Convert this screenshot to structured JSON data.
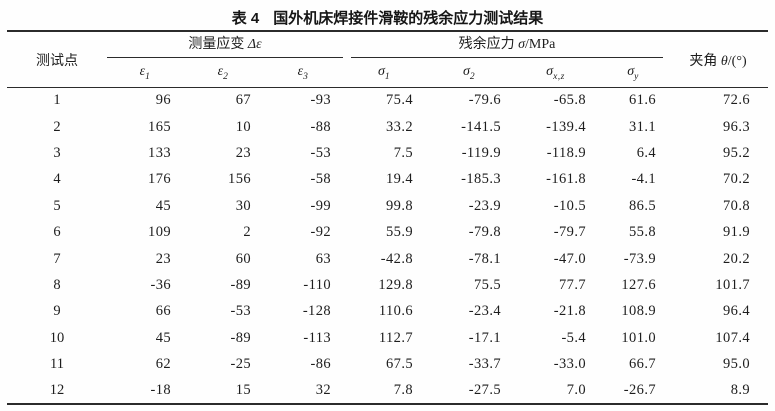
{
  "title": {
    "tag": "表 4",
    "text": "国外机床焊接件滑鞍的残余应力测试结果"
  },
  "table": {
    "col_point": "测试点",
    "group_strain": {
      "label": "测量应变",
      "sym": "Δε"
    },
    "group_stress": {
      "label": "残余应力",
      "sym": "σ",
      "unit": "/MPa"
    },
    "col_angle": {
      "label": "夹角",
      "sym": "θ",
      "unit": "/(°)"
    },
    "sub_columns": [
      {
        "base": "ε",
        "sub": "1"
      },
      {
        "base": "ε",
        "sub": "2"
      },
      {
        "base": "ε",
        "sub": "3"
      },
      {
        "base": "σ",
        "sub": "1"
      },
      {
        "base": "σ",
        "sub": "2"
      },
      {
        "base": "σ",
        "sub": "x,z"
      },
      {
        "base": "σ",
        "sub": "y"
      }
    ],
    "rows": [
      [
        "1",
        "96",
        "67",
        "-93",
        "75.4",
        "-79.6",
        "-65.8",
        "61.6",
        "72.6"
      ],
      [
        "2",
        "165",
        "10",
        "-88",
        "33.2",
        "-141.5",
        "-139.4",
        "31.1",
        "96.3"
      ],
      [
        "3",
        "133",
        "23",
        "-53",
        "7.5",
        "-119.9",
        "-118.9",
        "6.4",
        "95.2"
      ],
      [
        "4",
        "176",
        "156",
        "-58",
        "19.4",
        "-185.3",
        "-161.8",
        "-4.1",
        "70.2"
      ],
      [
        "5",
        "45",
        "30",
        "-99",
        "99.8",
        "-23.9",
        "-10.5",
        "86.5",
        "70.8"
      ],
      [
        "6",
        "109",
        "2",
        "-92",
        "55.9",
        "-79.8",
        "-79.7",
        "55.8",
        "91.9"
      ],
      [
        "7",
        "23",
        "60",
        "63",
        "-42.8",
        "-78.1",
        "-47.0",
        "-73.9",
        "20.2"
      ],
      [
        "8",
        "-36",
        "-89",
        "-110",
        "129.8",
        "75.5",
        "77.7",
        "127.6",
        "101.7"
      ],
      [
        "9",
        "66",
        "-53",
        "-128",
        "110.6",
        "-23.4",
        "-21.8",
        "108.9",
        "96.4"
      ],
      [
        "10",
        "45",
        "-89",
        "-113",
        "112.7",
        "-17.1",
        "-5.4",
        "101.0",
        "107.4"
      ],
      [
        "11",
        "62",
        "-25",
        "-86",
        "67.5",
        "-33.7",
        "-33.0",
        "66.7",
        "95.0"
      ],
      [
        "12",
        "-18",
        "15",
        "32",
        "7.8",
        "-27.5",
        "7.0",
        "-26.7",
        "8.9"
      ]
    ]
  }
}
